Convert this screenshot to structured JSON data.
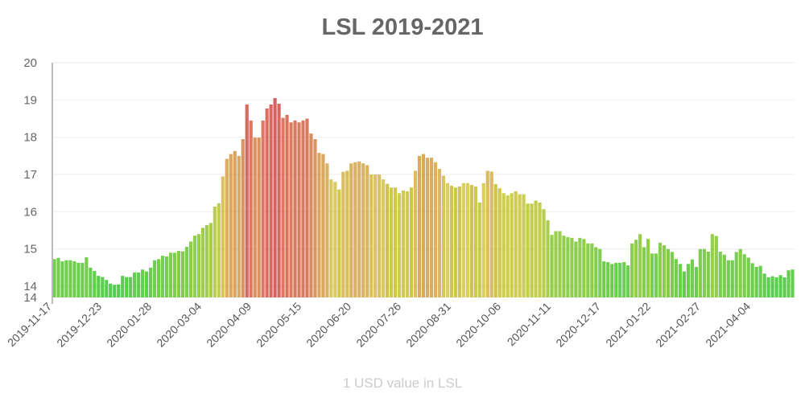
{
  "chart_data": {
    "type": "bar",
    "title": "LSL 2019-2021",
    "xlabel": "1 USD value in LSL",
    "ylabel": "",
    "ylim": [
      13.7,
      20
    ],
    "y_ticks": [
      "14",
      "14",
      "15",
      "16",
      "17",
      "18",
      "19",
      "20"
    ],
    "y_tick_values": [
      13.7,
      14,
      15,
      16,
      17,
      18,
      19,
      20
    ],
    "x_tick_labels": [
      "2019-11-17",
      "2019-12-23",
      "2020-01-28",
      "2020-03-04",
      "2020-04-09",
      "2020-05-15",
      "2020-06-20",
      "2020-07-26",
      "2020-08-31",
      "2020-10-06",
      "2020-11-11",
      "2020-12-17",
      "2021-01-22",
      "2021-02-27",
      "2021-04-04"
    ],
    "grid": true,
    "color_scale": {
      "low": "#2ecc40",
      "mid": "#c8c82a",
      "high": "#d9402a"
    },
    "values": [
      14.73,
      14.76,
      14.67,
      14.7,
      14.7,
      14.67,
      14.63,
      14.63,
      14.78,
      14.5,
      14.41,
      14.28,
      14.25,
      14.17,
      14.07,
      14.04,
      14.05,
      14.28,
      14.25,
      14.25,
      14.37,
      14.37,
      14.45,
      14.4,
      14.5,
      14.7,
      14.73,
      14.82,
      14.8,
      14.9,
      14.9,
      14.95,
      14.94,
      15.06,
      15.2,
      15.36,
      15.4,
      15.57,
      15.64,
      15.7,
      16.14,
      16.23,
      16.95,
      17.42,
      17.55,
      17.63,
      17.5,
      17.95,
      18.88,
      18.45,
      17.99,
      17.99,
      18.45,
      18.77,
      18.88,
      19.05,
      18.9,
      18.52,
      18.6,
      18.4,
      18.45,
      18.4,
      18.45,
      18.5,
      18.1,
      17.95,
      17.58,
      17.55,
      17.3,
      16.87,
      16.8,
      16.6,
      17.07,
      17.1,
      17.3,
      17.33,
      17.35,
      17.3,
      17.25,
      17.0,
      17.0,
      17.0,
      16.87,
      16.75,
      16.65,
      16.65,
      16.5,
      16.57,
      16.55,
      16.65,
      17.1,
      17.5,
      17.55,
      17.45,
      17.45,
      17.33,
      17.15,
      16.97,
      16.77,
      16.7,
      16.65,
      16.68,
      16.77,
      16.77,
      16.72,
      16.68,
      16.25,
      16.77,
      17.1,
      17.08,
      16.74,
      16.63,
      16.5,
      16.44,
      16.5,
      16.55,
      16.47,
      16.47,
      16.22,
      16.22,
      16.3,
      16.25,
      16.07,
      15.77,
      15.38,
      15.48,
      15.48,
      15.36,
      15.32,
      15.3,
      15.2,
      15.3,
      15.27,
      15.15,
      15.15,
      15.05,
      15.0,
      14.67,
      14.65,
      14.6,
      14.63,
      14.63,
      14.65,
      14.56,
      15.15,
      15.25,
      15.4,
      15.05,
      15.27,
      14.88,
      14.88,
      15.17,
      15.1,
      15.0,
      14.92,
      14.73,
      14.6,
      14.4,
      14.6,
      14.72,
      14.52,
      15.0,
      15.0,
      14.93,
      15.4,
      15.35,
      14.93,
      14.85,
      14.7,
      14.7,
      14.92,
      15.0,
      14.86,
      14.77,
      14.62,
      14.52,
      14.55,
      14.34,
      14.24,
      14.27,
      14.24,
      14.3,
      14.24,
      14.43,
      14.45
    ]
  }
}
